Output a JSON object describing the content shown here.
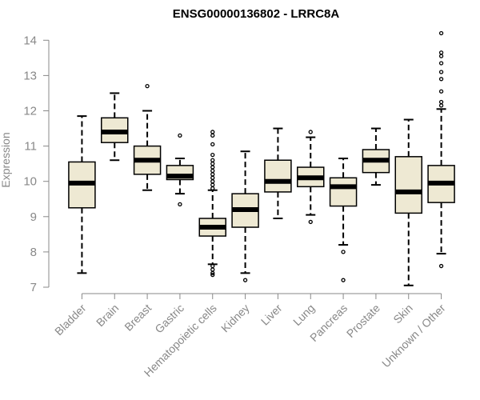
{
  "chart_data": {
    "type": "boxplot",
    "title": "ENSG00000136802 - LRRC8A",
    "xlabel": "",
    "ylabel": "Expression",
    "ylim": [
      7,
      14.3
    ],
    "yticks": [
      7,
      8,
      9,
      10,
      11,
      12,
      13,
      14
    ],
    "colors": {
      "box_fill": "#eee9d3",
      "outline": "#000000",
      "axis": "#888888"
    },
    "categories": [
      "Bladder",
      "Brain",
      "Breast",
      "Gastric",
      "Hematopoietic cells",
      "Kidney",
      "Liver",
      "Lung",
      "Pancreas",
      "Prostate",
      "Skin",
      "Unknown / Other"
    ],
    "boxes": [
      {
        "name": "Bladder",
        "q1": 9.25,
        "median": 9.95,
        "q3": 10.55,
        "whisker_low": 7.4,
        "whisker_high": 11.85,
        "outliers": []
      },
      {
        "name": "Brain",
        "q1": 11.1,
        "median": 11.4,
        "q3": 11.8,
        "whisker_low": 10.6,
        "whisker_high": 12.5,
        "outliers": []
      },
      {
        "name": "Breast",
        "q1": 10.2,
        "median": 10.6,
        "q3": 11.0,
        "whisker_low": 9.75,
        "whisker_high": 12.0,
        "outliers": [
          12.7
        ]
      },
      {
        "name": "Gastric",
        "q1": 10.05,
        "median": 10.15,
        "q3": 10.45,
        "whisker_low": 9.65,
        "whisker_high": 10.65,
        "outliers": [
          11.3,
          9.35
        ]
      },
      {
        "name": "Hematopoietic cells",
        "q1": 8.45,
        "median": 8.7,
        "q3": 8.95,
        "whisker_low": 7.65,
        "whisker_high": 9.75,
        "outliers": [
          11.4,
          11.3,
          11.05,
          10.75,
          10.6,
          10.5,
          10.4,
          10.3,
          10.2,
          10.1,
          10.0,
          9.9,
          9.8,
          7.6,
          7.5,
          7.4,
          7.35
        ]
      },
      {
        "name": "Kidney",
        "q1": 8.7,
        "median": 9.2,
        "q3": 9.65,
        "whisker_low": 7.4,
        "whisker_high": 10.85,
        "outliers": [
          7.2
        ]
      },
      {
        "name": "Liver",
        "q1": 9.7,
        "median": 10.0,
        "q3": 10.6,
        "whisker_low": 8.95,
        "whisker_high": 11.5,
        "outliers": []
      },
      {
        "name": "Lung",
        "q1": 9.85,
        "median": 10.1,
        "q3": 10.4,
        "whisker_low": 9.05,
        "whisker_high": 11.25,
        "outliers": [
          11.4,
          8.85
        ]
      },
      {
        "name": "Pancreas",
        "q1": 9.3,
        "median": 9.85,
        "q3": 10.1,
        "whisker_low": 8.2,
        "whisker_high": 10.65,
        "outliers": [
          8.0,
          7.2
        ]
      },
      {
        "name": "Prostate",
        "q1": 10.25,
        "median": 10.6,
        "q3": 10.9,
        "whisker_low": 9.9,
        "whisker_high": 11.5,
        "outliers": []
      },
      {
        "name": "Skin",
        "q1": 9.1,
        "median": 9.7,
        "q3": 10.7,
        "whisker_low": 7.05,
        "whisker_high": 11.75,
        "outliers": []
      },
      {
        "name": "Unknown / Other",
        "q1": 9.4,
        "median": 9.95,
        "q3": 10.45,
        "whisker_low": 7.95,
        "whisker_high": 12.05,
        "outliers": [
          14.2,
          13.65,
          13.55,
          13.35,
          13.1,
          12.9,
          12.55,
          12.25,
          12.15,
          7.6
        ]
      }
    ]
  }
}
